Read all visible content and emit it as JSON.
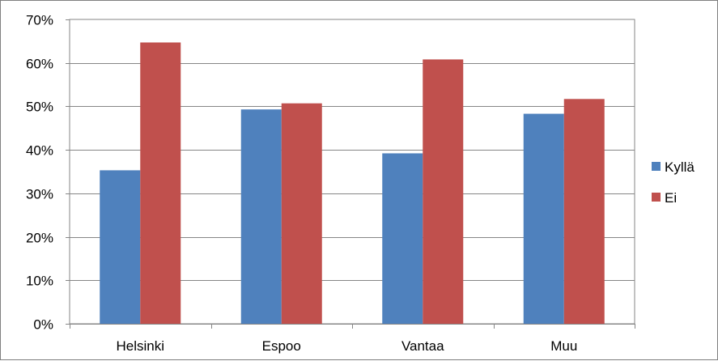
{
  "chart_data": {
    "type": "bar",
    "categories": [
      "Helsinki",
      "Espoo",
      "Vantaa",
      "Muu"
    ],
    "series": [
      {
        "name": "Kyllä",
        "values": [
          35.3,
          49.3,
          39.2,
          48.3
        ],
        "color": "#4f81bd"
      },
      {
        "name": "Ei",
        "values": [
          64.7,
          50.7,
          60.8,
          51.7
        ],
        "color": "#c0504d"
      }
    ],
    "yticks": [
      "0%",
      "10%",
      "20%",
      "30%",
      "40%",
      "50%",
      "60%",
      "70%"
    ],
    "ylim": [
      0,
      70
    ],
    "grid": true,
    "legend_position": "right"
  }
}
